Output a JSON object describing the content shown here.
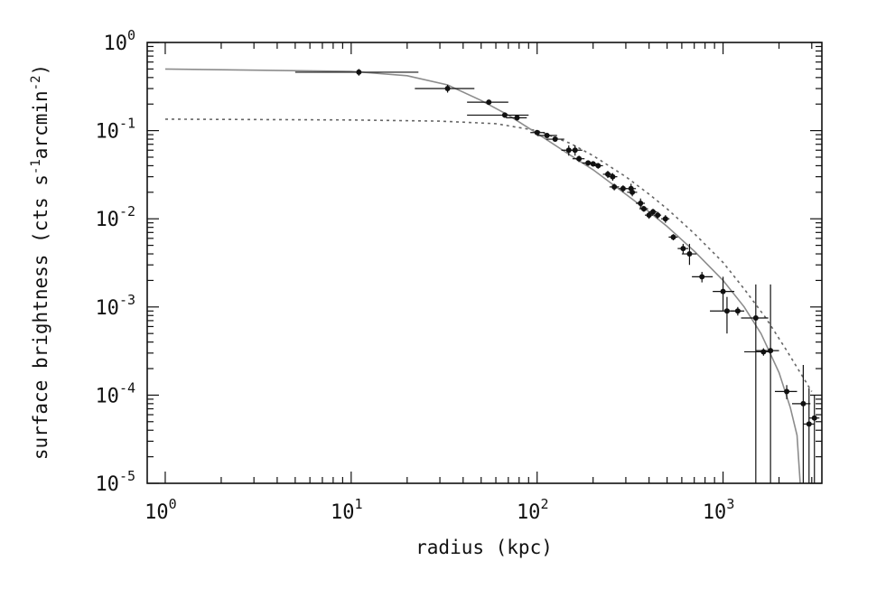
{
  "chart_data": {
    "type": "scatter",
    "xlabel": "radius (kpc)",
    "ylabel": "surface brightness (cts s",
    "ylabel_sup1": "-1",
    "ylabel_mid": "arcmin",
    "ylabel_sup2": "-2",
    "ylabel_end": ")",
    "xscale": "log",
    "yscale": "log",
    "xlim": [
      0.8,
      3400
    ],
    "ylim": [
      1e-05,
      1
    ],
    "x_ticks": [
      {
        "base": "10",
        "exp": "0",
        "value": 1
      },
      {
        "base": "10",
        "exp": "1",
        "value": 10
      },
      {
        "base": "10",
        "exp": "2",
        "value": 100
      },
      {
        "base": "10",
        "exp": "3",
        "value": 1000
      }
    ],
    "y_ticks": [
      {
        "base": "10",
        "exp": "0",
        "value": 1
      },
      {
        "base": "10",
        "exp": "-1",
        "value": 0.1
      },
      {
        "base": "10",
        "exp": "-2",
        "value": 0.01
      },
      {
        "base": "10",
        "exp": "-3",
        "value": 0.001
      },
      {
        "base": "10",
        "exp": "-4",
        "value": 0.0001
      },
      {
        "base": "10",
        "exp": "-5",
        "value": 1e-05
      }
    ],
    "grid": false,
    "data_points": [
      {
        "x": 11,
        "xlo": 5,
        "xhi": 23,
        "y": 0.46,
        "ylo": 0.42,
        "yhi": 0.5
      },
      {
        "x": 33,
        "xlo": 22,
        "xhi": 46,
        "y": 0.3,
        "ylo": 0.27,
        "yhi": 0.33
      },
      {
        "x": 55,
        "xlo": 42,
        "xhi": 70,
        "y": 0.21,
        "ylo": 0.2,
        "yhi": 0.22
      },
      {
        "x": 67,
        "xlo": 42,
        "xhi": 90,
        "y": 0.15,
        "ylo": 0.14,
        "yhi": 0.16
      },
      {
        "x": 78,
        "xlo": 68,
        "xhi": 88,
        "y": 0.14,
        "ylo": 0.13,
        "yhi": 0.15
      },
      {
        "x": 100,
        "xlo": 92,
        "xhi": 110,
        "y": 0.095,
        "ylo": 0.09,
        "yhi": 0.1
      },
      {
        "x": 113,
        "xlo": 100,
        "xhi": 128,
        "y": 0.088,
        "ylo": 0.083,
        "yhi": 0.093
      },
      {
        "x": 125,
        "xlo": 112,
        "xhi": 140,
        "y": 0.08,
        "ylo": 0.075,
        "yhi": 0.085
      },
      {
        "x": 148,
        "xlo": 135,
        "xhi": 163,
        "y": 0.06,
        "ylo": 0.052,
        "yhi": 0.068
      },
      {
        "x": 160,
        "xlo": 148,
        "xhi": 175,
        "y": 0.06,
        "ylo": 0.052,
        "yhi": 0.068
      },
      {
        "x": 168,
        "xlo": 155,
        "xhi": 180,
        "y": 0.048,
        "ylo": 0.044,
        "yhi": 0.052
      },
      {
        "x": 188,
        "xlo": 175,
        "xhi": 203,
        "y": 0.043,
        "ylo": 0.04,
        "yhi": 0.046
      },
      {
        "x": 200,
        "xlo": 188,
        "xhi": 213,
        "y": 0.042,
        "ylo": 0.039,
        "yhi": 0.045
      },
      {
        "x": 213,
        "xlo": 200,
        "xhi": 226,
        "y": 0.04,
        "ylo": 0.037,
        "yhi": 0.043
      },
      {
        "x": 240,
        "xlo": 226,
        "xhi": 255,
        "y": 0.032,
        "ylo": 0.029,
        "yhi": 0.035
      },
      {
        "x": 255,
        "xlo": 240,
        "xhi": 270,
        "y": 0.03,
        "ylo": 0.027,
        "yhi": 0.033
      },
      {
        "x": 260,
        "xlo": 245,
        "xhi": 276,
        "y": 0.023,
        "ylo": 0.021,
        "yhi": 0.025
      },
      {
        "x": 290,
        "xlo": 275,
        "xhi": 305,
        "y": 0.022,
        "ylo": 0.02,
        "yhi": 0.024
      },
      {
        "x": 320,
        "xlo": 300,
        "xhi": 340,
        "y": 0.022,
        "ylo": 0.019,
        "yhi": 0.025
      },
      {
        "x": 325,
        "xlo": 305,
        "xhi": 345,
        "y": 0.02,
        "ylo": 0.018,
        "yhi": 0.022
      },
      {
        "x": 360,
        "xlo": 340,
        "xhi": 380,
        "y": 0.015,
        "ylo": 0.013,
        "yhi": 0.017
      },
      {
        "x": 375,
        "xlo": 355,
        "xhi": 395,
        "y": 0.013,
        "ylo": 0.012,
        "yhi": 0.014
      },
      {
        "x": 400,
        "xlo": 380,
        "xhi": 420,
        "y": 0.011,
        "ylo": 0.01,
        "yhi": 0.012
      },
      {
        "x": 420,
        "xlo": 400,
        "xhi": 440,
        "y": 0.012,
        "ylo": 0.011,
        "yhi": 0.013
      },
      {
        "x": 445,
        "xlo": 425,
        "xhi": 465,
        "y": 0.011,
        "ylo": 0.01,
        "yhi": 0.012
      },
      {
        "x": 490,
        "xlo": 465,
        "xhi": 515,
        "y": 0.01,
        "ylo": 0.009,
        "yhi": 0.011
      },
      {
        "x": 540,
        "xlo": 510,
        "xhi": 570,
        "y": 0.0062,
        "ylo": 0.0057,
        "yhi": 0.0067
      },
      {
        "x": 610,
        "xlo": 570,
        "xhi": 650,
        "y": 0.0046,
        "ylo": 0.004,
        "yhi": 0.0052
      },
      {
        "x": 660,
        "xlo": 600,
        "xhi": 720,
        "y": 0.004,
        "ylo": 0.003,
        "yhi": 0.0052
      },
      {
        "x": 770,
        "xlo": 680,
        "xhi": 880,
        "y": 0.0022,
        "ylo": 0.0019,
        "yhi": 0.0025
      },
      {
        "x": 1000,
        "xlo": 880,
        "xhi": 1150,
        "y": 0.0015,
        "ylo": 0.0009,
        "yhi": 0.0022
      },
      {
        "x": 1050,
        "xlo": 850,
        "xhi": 1250,
        "y": 0.0009,
        "ylo": 0.0005,
        "yhi": 0.0013
      },
      {
        "x": 1200,
        "xlo": 1100,
        "xhi": 1300,
        "y": 0.0009,
        "ylo": 0.0008,
        "yhi": 0.001
      },
      {
        "x": 1500,
        "xlo": 1250,
        "xhi": 1750,
        "y": 0.00075,
        "ylo": 1e-05,
        "yhi": 0.0018
      },
      {
        "x": 1650,
        "xlo": 1300,
        "xhi": 1850,
        "y": 0.00031,
        "ylo": 0.00028,
        "yhi": 0.00034
      },
      {
        "x": 1800,
        "xlo": 1500,
        "xhi": 2000,
        "y": 0.00032,
        "ylo": 1e-05,
        "yhi": 0.0018
      },
      {
        "x": 2200,
        "xlo": 1900,
        "xhi": 2500,
        "y": 0.00011,
        "ylo": 9e-05,
        "yhi": 0.00013
      },
      {
        "x": 2700,
        "xlo": 2350,
        "xhi": 2950,
        "y": 8e-05,
        "ylo": 1e-05,
        "yhi": 0.00022
      },
      {
        "x": 2900,
        "xlo": 2700,
        "xhi": 3100,
        "y": 4.7e-05,
        "ylo": 1e-05,
        "yhi": 0.00012
      },
      {
        "x": 3100,
        "xlo": 2900,
        "xhi": 3300,
        "y": 5.5e-05,
        "ylo": 1e-05,
        "yhi": 0.0001
      }
    ],
    "model_solid": {
      "style": "solid",
      "color": "#8c8c8c",
      "points": [
        [
          1,
          0.5
        ],
        [
          10,
          0.47
        ],
        [
          20,
          0.42
        ],
        [
          33,
          0.33
        ],
        [
          50,
          0.22
        ],
        [
          70,
          0.15
        ],
        [
          100,
          0.093
        ],
        [
          150,
          0.053
        ],
        [
          200,
          0.036
        ],
        [
          300,
          0.019
        ],
        [
          400,
          0.012
        ],
        [
          500,
          0.0082
        ],
        [
          700,
          0.0043
        ],
        [
          1000,
          0.002
        ],
        [
          1300,
          0.001
        ],
        [
          1600,
          0.0005
        ],
        [
          2000,
          0.00018
        ],
        [
          2300,
          7.2e-05
        ],
        [
          2500,
          3.5e-05
        ],
        [
          2600,
          1e-05
        ]
      ]
    },
    "model_dashed": {
      "style": "dashed",
      "color": "#666666",
      "points": [
        [
          1,
          0.135
        ],
        [
          10,
          0.132
        ],
        [
          30,
          0.128
        ],
        [
          60,
          0.12
        ],
        [
          100,
          0.1
        ],
        [
          150,
          0.072
        ],
        [
          200,
          0.052
        ],
        [
          300,
          0.03
        ],
        [
          400,
          0.019
        ],
        [
          500,
          0.013
        ],
        [
          700,
          0.0068
        ],
        [
          1000,
          0.0032
        ],
        [
          1300,
          0.0016
        ],
        [
          1700,
          0.00075
        ],
        [
          2200,
          0.00032
        ],
        [
          3000,
          0.00011
        ]
      ]
    }
  }
}
